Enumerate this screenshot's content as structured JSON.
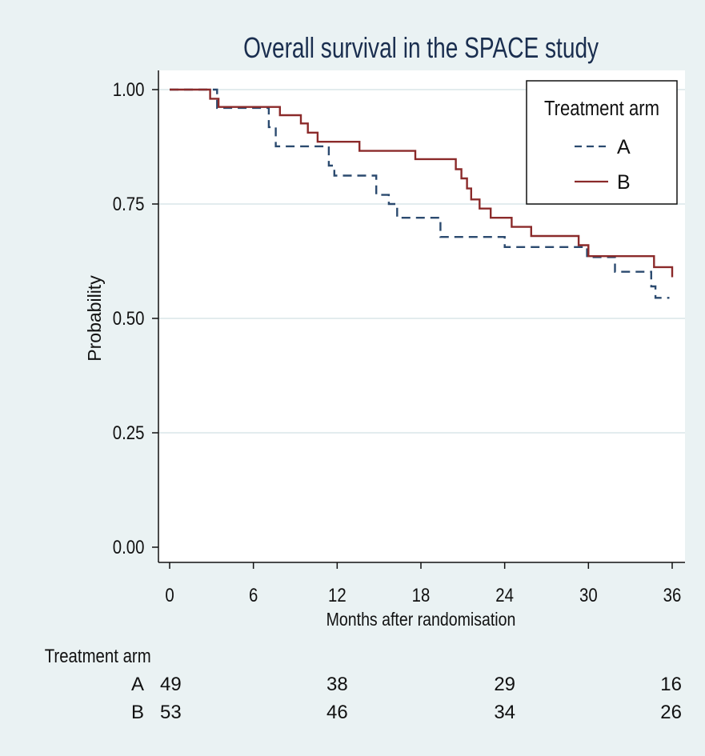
{
  "chart_data": {
    "type": "line",
    "subtype": "kaplan-meier step curves",
    "title": "Overall survival in the SPACE study",
    "xlabel": "Months after randomisation",
    "ylabel": "Probability",
    "xlim": [
      0,
      36
    ],
    "ylim": [
      0,
      1
    ],
    "x_ticks": [
      0,
      6,
      12,
      18,
      24,
      30,
      36
    ],
    "y_ticks": [
      0.0,
      0.25,
      0.5,
      0.75,
      1.0
    ],
    "y_tick_labels": [
      "0.00",
      "0.25",
      "0.50",
      "0.75",
      "1.00"
    ],
    "grid": "horizontal",
    "legend": {
      "title": "Treatment arm",
      "placement": "top-right",
      "entries": [
        "A",
        "B"
      ]
    },
    "series": [
      {
        "name": "A",
        "color": "#2b4a6f",
        "style": "dashed",
        "steps": [
          [
            0,
            1.0
          ],
          [
            3.4,
            0.96
          ],
          [
            7.1,
            0.918
          ],
          [
            7.6,
            0.876
          ],
          [
            11.4,
            0.834
          ],
          [
            11.8,
            0.812
          ],
          [
            14.8,
            0.77
          ],
          [
            15.7,
            0.75
          ],
          [
            16.3,
            0.72
          ],
          [
            19.4,
            0.678
          ],
          [
            24.0,
            0.656
          ],
          [
            29.9,
            0.634
          ],
          [
            31.9,
            0.602
          ],
          [
            34.5,
            0.57
          ],
          [
            34.8,
            0.545
          ],
          [
            35.8,
            0.545
          ]
        ]
      },
      {
        "name": "B",
        "color": "#8b2a2a",
        "style": "solid",
        "steps": [
          [
            0,
            1.0
          ],
          [
            2.9,
            0.98
          ],
          [
            3.5,
            0.962
          ],
          [
            7.9,
            0.944
          ],
          [
            9.4,
            0.926
          ],
          [
            9.9,
            0.906
          ],
          [
            10.6,
            0.886
          ],
          [
            13.6,
            0.866
          ],
          [
            17.6,
            0.848
          ],
          [
            20.5,
            0.826
          ],
          [
            20.9,
            0.806
          ],
          [
            21.3,
            0.784
          ],
          [
            21.6,
            0.76
          ],
          [
            22.2,
            0.74
          ],
          [
            23.0,
            0.72
          ],
          [
            24.5,
            0.7
          ],
          [
            25.9,
            0.68
          ],
          [
            29.3,
            0.66
          ],
          [
            30.0,
            0.636
          ],
          [
            34.7,
            0.612
          ],
          [
            36.0,
            0.59
          ]
        ]
      }
    ],
    "risk_table": {
      "header": "Treatment arm",
      "times": [
        0,
        12,
        24,
        36
      ],
      "rows": [
        {
          "name": "A",
          "counts": [
            "49",
            "38",
            "29",
            "16"
          ]
        },
        {
          "name": "B",
          "counts": [
            "53",
            "46",
            "34",
            "26"
          ]
        }
      ]
    }
  }
}
